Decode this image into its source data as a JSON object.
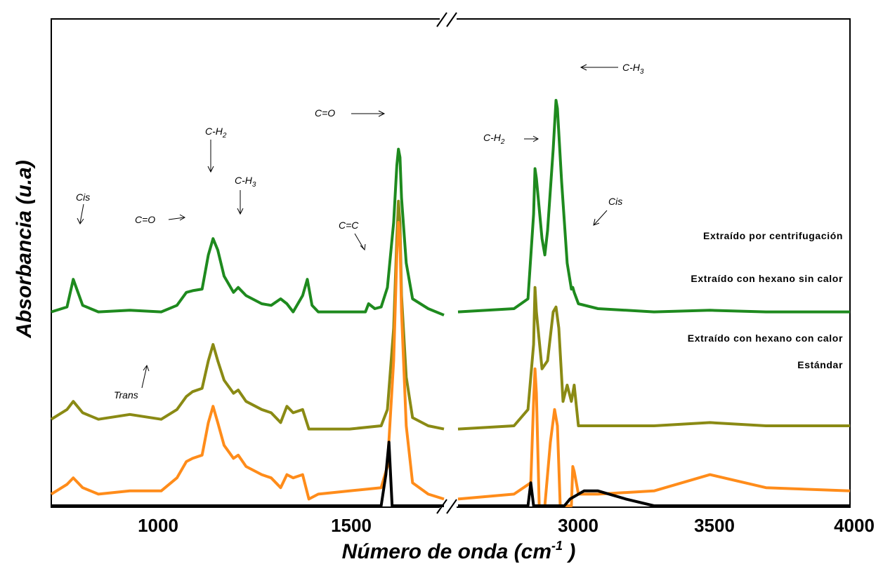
{
  "chart_data": {
    "type": "line",
    "xlabel_main": "Número de onda (cm",
    "xlabel_sup": "-1",
    "xlabel_end": " )",
    "ylabel": "Absorbancia (u.a)",
    "axis_break": "//",
    "x_ticks": [
      {
        "value": 1000,
        "label": "1000"
      },
      {
        "value": 1500,
        "label": "1500"
      },
      {
        "value": 3000,
        "label": "3000"
      },
      {
        "value": 3500,
        "label": "3500"
      },
      {
        "value": 4000,
        "label": "4000"
      }
    ],
    "segments": [
      {
        "xlim": [
          650,
          1900
        ]
      },
      {
        "xlim": [
          2600,
          4000
        ]
      }
    ],
    "ylim": [
      -1.2,
      1.8
    ],
    "series": [
      {
        "name": "Extraído por centrifugación",
        "color": "#1e8a1e",
        "points": [
          [
            650,
            0.0
          ],
          [
            700,
            0.03
          ],
          [
            720,
            0.2
          ],
          [
            750,
            0.04
          ],
          [
            800,
            0.0
          ],
          [
            900,
            0.01
          ],
          [
            1000,
            0.0
          ],
          [
            1050,
            0.04
          ],
          [
            1080,
            0.12
          ],
          [
            1100,
            0.13
          ],
          [
            1130,
            0.14
          ],
          [
            1150,
            0.35
          ],
          [
            1165,
            0.45
          ],
          [
            1180,
            0.38
          ],
          [
            1200,
            0.22
          ],
          [
            1230,
            0.12
          ],
          [
            1245,
            0.15
          ],
          [
            1270,
            0.1
          ],
          [
            1320,
            0.05
          ],
          [
            1350,
            0.04
          ],
          [
            1380,
            0.08
          ],
          [
            1400,
            0.05
          ],
          [
            1420,
            0.0
          ],
          [
            1450,
            0.1
          ],
          [
            1465,
            0.2
          ],
          [
            1480,
            0.04
          ],
          [
            1500,
            0.0
          ],
          [
            1600,
            0.0
          ],
          [
            1650,
            0.0
          ],
          [
            1660,
            0.05
          ],
          [
            1680,
            0.02
          ],
          [
            1700,
            0.03
          ],
          [
            1720,
            0.15
          ],
          [
            1740,
            0.55
          ],
          [
            1750,
            0.9
          ],
          [
            1755,
            1.0
          ],
          [
            1760,
            0.95
          ],
          [
            1765,
            0.7
          ],
          [
            1780,
            0.3
          ],
          [
            1800,
            0.08
          ],
          [
            1850,
            0.02
          ],
          [
            1900,
            -0.02
          ],
          [
            2600,
            0.0
          ],
          [
            2800,
            0.02
          ],
          [
            2850,
            0.08
          ],
          [
            2870,
            0.6
          ],
          [
            2875,
            0.88
          ],
          [
            2880,
            0.82
          ],
          [
            2900,
            0.45
          ],
          [
            2910,
            0.35
          ],
          [
            2920,
            0.5
          ],
          [
            2940,
            1.0
          ],
          [
            2950,
            1.3
          ],
          [
            2955,
            1.25
          ],
          [
            2970,
            0.8
          ],
          [
            2990,
            0.3
          ],
          [
            3005,
            0.14
          ],
          [
            3010,
            0.15
          ],
          [
            3015,
            0.12
          ],
          [
            3030,
            0.05
          ],
          [
            3100,
            0.02
          ],
          [
            3300,
            0.0
          ],
          [
            3500,
            0.01
          ],
          [
            3700,
            0.0
          ],
          [
            4000,
            0.0
          ]
        ]
      },
      {
        "name": "Extraído con hexano sin calor",
        "color": "#8a8a14",
        "points": [
          [
            650,
            -0.66
          ],
          [
            700,
            -0.6
          ],
          [
            720,
            -0.55
          ],
          [
            750,
            -0.62
          ],
          [
            800,
            -0.66
          ],
          [
            900,
            -0.63
          ],
          [
            1000,
            -0.66
          ],
          [
            1050,
            -0.6
          ],
          [
            1080,
            -0.52
          ],
          [
            1100,
            -0.49
          ],
          [
            1130,
            -0.47
          ],
          [
            1150,
            -0.3
          ],
          [
            1165,
            -0.2
          ],
          [
            1180,
            -0.3
          ],
          [
            1200,
            -0.42
          ],
          [
            1230,
            -0.5
          ],
          [
            1245,
            -0.48
          ],
          [
            1270,
            -0.55
          ],
          [
            1320,
            -0.6
          ],
          [
            1350,
            -0.62
          ],
          [
            1380,
            -0.68
          ],
          [
            1400,
            -0.58
          ],
          [
            1420,
            -0.62
          ],
          [
            1450,
            -0.6
          ],
          [
            1470,
            -0.72
          ],
          [
            1500,
            -0.72
          ],
          [
            1600,
            -0.72
          ],
          [
            1700,
            -0.7
          ],
          [
            1720,
            -0.6
          ],
          [
            1740,
            -0.1
          ],
          [
            1750,
            0.45
          ],
          [
            1755,
            0.68
          ],
          [
            1760,
            0.55
          ],
          [
            1765,
            0.1
          ],
          [
            1780,
            -0.4
          ],
          [
            1800,
            -0.65
          ],
          [
            1850,
            -0.7
          ],
          [
            1900,
            -0.72
          ],
          [
            2600,
            -0.72
          ],
          [
            2800,
            -0.7
          ],
          [
            2850,
            -0.6
          ],
          [
            2870,
            -0.2
          ],
          [
            2875,
            0.15
          ],
          [
            2880,
            0.0
          ],
          [
            2900,
            -0.35
          ],
          [
            2920,
            -0.3
          ],
          [
            2940,
            0.0
          ],
          [
            2950,
            0.03
          ],
          [
            2960,
            -0.1
          ],
          [
            2975,
            -0.55
          ],
          [
            2990,
            -0.45
          ],
          [
            3005,
            -0.55
          ],
          [
            3015,
            -0.45
          ],
          [
            3030,
            -0.7
          ],
          [
            3100,
            -0.7
          ],
          [
            3300,
            -0.7
          ],
          [
            3500,
            -0.68
          ],
          [
            3700,
            -0.7
          ],
          [
            4000,
            -0.7
          ]
        ]
      },
      {
        "name": "Extraído con hexano con calor",
        "color": "#ff8c1a",
        "points": [
          [
            650,
            -1.12
          ],
          [
            700,
            -1.06
          ],
          [
            720,
            -1.02
          ],
          [
            750,
            -1.08
          ],
          [
            800,
            -1.12
          ],
          [
            900,
            -1.1
          ],
          [
            1000,
            -1.1
          ],
          [
            1050,
            -1.02
          ],
          [
            1080,
            -0.92
          ],
          [
            1100,
            -0.9
          ],
          [
            1130,
            -0.88
          ],
          [
            1150,
            -0.68
          ],
          [
            1165,
            -0.58
          ],
          [
            1180,
            -0.68
          ],
          [
            1200,
            -0.82
          ],
          [
            1230,
            -0.9
          ],
          [
            1245,
            -0.88
          ],
          [
            1270,
            -0.95
          ],
          [
            1320,
            -1.0
          ],
          [
            1350,
            -1.02
          ],
          [
            1380,
            -1.08
          ],
          [
            1400,
            -1.0
          ],
          [
            1420,
            -1.02
          ],
          [
            1450,
            -1.0
          ],
          [
            1470,
            -1.15
          ],
          [
            1500,
            -1.12
          ],
          [
            1600,
            -1.1
          ],
          [
            1700,
            -1.08
          ],
          [
            1720,
            -0.95
          ],
          [
            1740,
            -0.3
          ],
          [
            1750,
            0.35
          ],
          [
            1755,
            0.55
          ],
          [
            1760,
            0.45
          ],
          [
            1765,
            0.0
          ],
          [
            1780,
            -0.7
          ],
          [
            1800,
            -1.05
          ],
          [
            1850,
            -1.12
          ],
          [
            1900,
            -1.15
          ],
          [
            2600,
            -1.15
          ],
          [
            2800,
            -1.12
          ],
          [
            2860,
            -1.05
          ],
          [
            2870,
            -0.55
          ],
          [
            2875,
            -0.35
          ],
          [
            2880,
            -0.5
          ],
          [
            2890,
            -1.4
          ],
          [
            2900,
            -1.9
          ],
          [
            2910,
            -1.5
          ],
          [
            2930,
            -0.8
          ],
          [
            2945,
            -0.6
          ],
          [
            2955,
            -0.7
          ],
          [
            2965,
            -1.5
          ],
          [
            2975,
            -2.5
          ],
          [
            2985,
            -3.1
          ],
          [
            2995,
            -2.0
          ],
          [
            3005,
            -1.2
          ],
          [
            3010,
            -0.95
          ],
          [
            3015,
            -0.98
          ],
          [
            3030,
            -1.12
          ],
          [
            3100,
            -1.12
          ],
          [
            3300,
            -1.1
          ],
          [
            3500,
            -1.0
          ],
          [
            3700,
            -1.08
          ],
          [
            4000,
            -1.1
          ]
        ]
      },
      {
        "name": "Estándar",
        "color": "#000000",
        "points": [
          [
            650,
            -1.45
          ],
          [
            700,
            -1.47
          ],
          [
            800,
            -1.47
          ],
          [
            900,
            -1.45
          ],
          [
            950,
            -1.43
          ],
          [
            960,
            -1.3
          ],
          [
            965,
            -1.25
          ],
          [
            970,
            -1.35
          ],
          [
            990,
            -1.45
          ],
          [
            1050,
            -1.45
          ],
          [
            1080,
            -1.43
          ],
          [
            1100,
            -1.45
          ],
          [
            1150,
            -1.45
          ],
          [
            1200,
            -1.42
          ],
          [
            1220,
            -1.38
          ],
          [
            1240,
            -1.36
          ],
          [
            1260,
            -1.34
          ],
          [
            1280,
            -1.38
          ],
          [
            1320,
            -1.4
          ],
          [
            1350,
            -1.45
          ],
          [
            1380,
            -1.6
          ],
          [
            1400,
            -1.48
          ],
          [
            1420,
            -1.35
          ],
          [
            1440,
            -1.38
          ],
          [
            1460,
            -1.6
          ],
          [
            1480,
            -1.55
          ],
          [
            1500,
            -1.48
          ],
          [
            1600,
            -1.45
          ],
          [
            1650,
            -1.43
          ],
          [
            1680,
            -1.38
          ],
          [
            1700,
            -1.25
          ],
          [
            1715,
            -1.0
          ],
          [
            1725,
            -0.8
          ],
          [
            1735,
            -1.2
          ],
          [
            1745,
            -1.4
          ],
          [
            1760,
            -1.45
          ],
          [
            1800,
            -1.48
          ],
          [
            1900,
            -1.5
          ],
          [
            2600,
            -1.5
          ],
          [
            2800,
            -1.45
          ],
          [
            2850,
            -1.35
          ],
          [
            2860,
            -1.05
          ],
          [
            2870,
            -1.25
          ],
          [
            2880,
            -1.8
          ],
          [
            2895,
            -1.7
          ],
          [
            2900,
            -1.9
          ],
          [
            2915,
            -1.7
          ],
          [
            2925,
            -1.85
          ],
          [
            2940,
            -1.75
          ],
          [
            2950,
            -2.0
          ],
          [
            2960,
            -1.6
          ],
          [
            2980,
            -1.3
          ],
          [
            3000,
            -1.15
          ],
          [
            3050,
            -1.1
          ],
          [
            3100,
            -1.1
          ],
          [
            3200,
            -1.15
          ],
          [
            3300,
            -1.25
          ],
          [
            3400,
            -1.35
          ],
          [
            3500,
            -1.45
          ],
          [
            3600,
            -1.5
          ],
          [
            3700,
            -1.55
          ],
          [
            3800,
            -1.57
          ],
          [
            4000,
            -1.6
          ]
        ]
      }
    ],
    "annotations": [
      {
        "id": "cis-left",
        "text": "Cis",
        "sub": ""
      },
      {
        "id": "co-left",
        "text": "C=O",
        "sub": ""
      },
      {
        "id": "ch2-left",
        "text": "C-H",
        "sub": "2"
      },
      {
        "id": "ch3-left",
        "text": "C-H",
        "sub": "3"
      },
      {
        "id": "cc",
        "text": "C=C",
        "sub": ""
      },
      {
        "id": "co-peak",
        "text": "C=O",
        "sub": ""
      },
      {
        "id": "trans",
        "text": "Trans",
        "sub": ""
      },
      {
        "id": "ch2-right",
        "text": "C-H",
        "sub": "2"
      },
      {
        "id": "ch3-right",
        "text": "C-H",
        "sub": "3"
      },
      {
        "id": "cis-right",
        "text": "Cis",
        "sub": ""
      }
    ]
  }
}
